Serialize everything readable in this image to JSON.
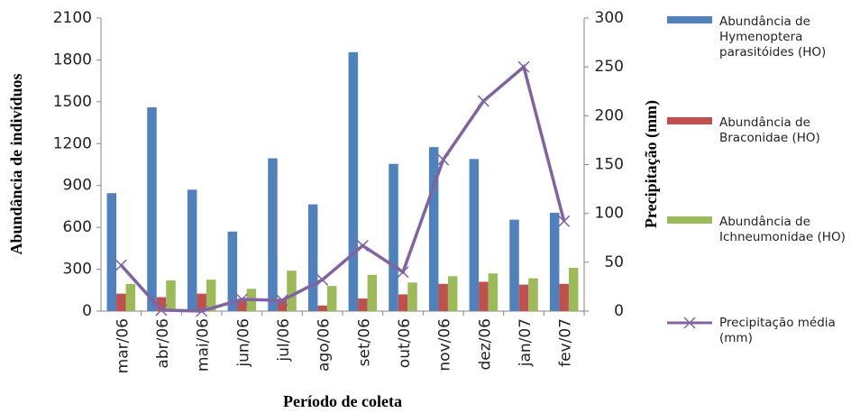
{
  "chart_data": {
    "type": "bar",
    "x_label": "Período de coleta",
    "y_label": "Abundância de indivíduos",
    "y2_label": "Precipitação (mm)",
    "categories": [
      "mar/06",
      "abr/06",
      "mai/06",
      "jun/06",
      "jul/06",
      "ago/06",
      "set/06",
      "out/06",
      "nov/06",
      "dez/06",
      "jan/07",
      "fev/07"
    ],
    "series": [
      {
        "name": "Abundância de Hymenoptera parasitóides (HO)",
        "color": "#4f81bd",
        "type": "bar",
        "values": [
          845,
          1460,
          870,
          570,
          1095,
          765,
          1855,
          1055,
          1175,
          1090,
          655,
          705
        ]
      },
      {
        "name": "Abundância de Braconidae (HO)",
        "color": "#c0504d",
        "type": "bar",
        "values": [
          125,
          100,
          125,
          80,
          80,
          40,
          90,
          120,
          195,
          210,
          190,
          195
        ]
      },
      {
        "name": "Abundância de Ichneumonidae (HO)",
        "color": "#9bbb59",
        "type": "bar",
        "values": [
          195,
          220,
          225,
          160,
          290,
          180,
          260,
          205,
          250,
          270,
          235,
          310
        ]
      },
      {
        "name": "Precipitação média (mm)",
        "color": "#8064a2",
        "type": "line",
        "axis": "y2",
        "values": [
          47,
          1,
          0,
          12,
          11,
          32,
          67,
          40,
          155,
          215,
          250,
          92
        ]
      }
    ],
    "ylim": [
      0,
      2100
    ],
    "yticks": [
      0,
      300,
      600,
      900,
      1200,
      1500,
      1800,
      2100
    ],
    "y2lim": [
      0,
      300
    ],
    "y2ticks": [
      0,
      50,
      100,
      150,
      200,
      250,
      300
    ],
    "legend": "right",
    "grid": false
  }
}
